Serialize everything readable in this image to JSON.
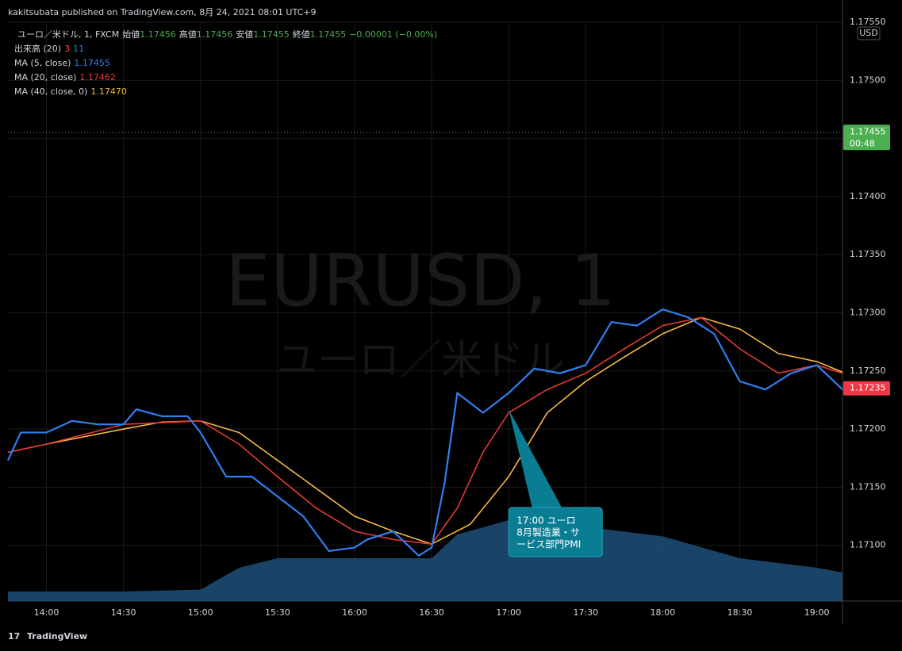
{
  "header": {
    "published": "kakitsubata published on TradingView.com, 8月 24, 2021 08:01 UTC+9",
    "symbol": "ユーロ／米ドル, 1, FXCM",
    "ohlc": [
      {
        "label": "始値",
        "value": "1.17456"
      },
      {
        "label": "高値",
        "value": "1.17456"
      },
      {
        "label": "安値",
        "value": "1.17455"
      },
      {
        "label": "終値",
        "value": "1.17455"
      }
    ],
    "change": "−0.00001 (−0.00%)",
    "volume_name": "出来高 (20)",
    "volume_values": [
      "3",
      "11"
    ],
    "footer": "TradingView"
  },
  "chart_data": {
    "type": "line",
    "watermark": [
      "EURUSD, 1",
      "ユーロ／米ドル"
    ],
    "currency": "USD",
    "xlim": [
      825,
      1150
    ],
    "xticks": [
      {
        "value": 840,
        "label": "14:00"
      },
      {
        "value": 870,
        "label": "14:30"
      },
      {
        "value": 900,
        "label": "15:00"
      },
      {
        "value": 930,
        "label": "15:30"
      },
      {
        "value": 960,
        "label": "16:00"
      },
      {
        "value": 990,
        "label": "16:30"
      },
      {
        "value": 1020,
        "label": "17:00"
      },
      {
        "value": 1050,
        "label": "17:30"
      },
      {
        "value": 1080,
        "label": "18:00"
      },
      {
        "value": 1110,
        "label": "18:30"
      },
      {
        "value": 1140,
        "label": "19:00"
      }
    ],
    "ylim": [
      1.17052,
      1.1755
    ],
    "yticks": [
      {
        "value": 1.171,
        "label": "1.17100"
      },
      {
        "value": 1.1715,
        "label": "1.17150"
      },
      {
        "value": 1.172,
        "label": "1.17200"
      },
      {
        "value": 1.1725,
        "label": "1.17250"
      },
      {
        "value": 1.173,
        "label": "1.17300"
      },
      {
        "value": 1.1735,
        "label": "1.17350"
      },
      {
        "value": 1.174,
        "label": "1.17400"
      },
      {
        "value": 1.1745,
        "label": "1.17450"
      },
      {
        "value": 1.175,
        "label": "1.17500"
      },
      {
        "value": 1.1755,
        "label": "1.17550"
      }
    ],
    "grid": true,
    "series": [
      {
        "name": "MA (5, close)",
        "legend_value": "1.17455",
        "color": "#2f7ff0",
        "x": [
          825,
          830,
          840,
          850,
          860,
          870,
          875,
          885,
          895,
          900,
          910,
          920,
          930,
          940,
          950,
          960,
          965,
          975,
          985,
          990,
          995,
          1000,
          1010,
          1020,
          1030,
          1040,
          1050,
          1060,
          1070,
          1080,
          1090,
          1100,
          1110,
          1120,
          1130,
          1140,
          1150
        ],
        "values": [
          1.17173,
          1.17197,
          1.17197,
          1.17207,
          1.17204,
          1.17204,
          1.17217,
          1.17211,
          1.17211,
          1.17197,
          1.17159,
          1.17159,
          1.17142,
          1.17125,
          1.17095,
          1.17098,
          1.17105,
          1.17112,
          1.17091,
          1.17098,
          1.17153,
          1.17231,
          1.17214,
          1.17231,
          1.17252,
          1.17248,
          1.17255,
          1.17292,
          1.17289,
          1.17303,
          1.17296,
          1.17282,
          1.17241,
          1.17234,
          1.17248,
          1.17255,
          1.17234
        ]
      },
      {
        "name": "MA (20, close)",
        "legend_value": "1.17462",
        "color": "#e53935",
        "x": [
          825,
          840,
          870,
          900,
          915,
          930,
          945,
          960,
          975,
          990,
          1000,
          1010,
          1020,
          1035,
          1050,
          1065,
          1080,
          1095,
          1110,
          1125,
          1140,
          1150
        ],
        "values": [
          1.1718,
          1.17187,
          1.17204,
          1.17207,
          1.17187,
          1.17159,
          1.17132,
          1.17112,
          1.17105,
          1.17101,
          1.17132,
          1.1718,
          1.17214,
          1.17234,
          1.17248,
          1.17269,
          1.17289,
          1.17296,
          1.17269,
          1.17248,
          1.17255,
          1.17248
        ]
      },
      {
        "name": "MA (40, close, 0)",
        "legend_value": "1.17470",
        "color": "#f5b841",
        "x": [
          825,
          840,
          870,
          885,
          900,
          915,
          930,
          945,
          960,
          975,
          990,
          1005,
          1020,
          1035,
          1050,
          1065,
          1080,
          1095,
          1110,
          1125,
          1140,
          1150
        ],
        "values": [
          1.1718,
          1.17187,
          1.172,
          1.17206,
          1.17207,
          1.17197,
          1.17173,
          1.17149,
          1.17125,
          1.17112,
          1.17101,
          1.17118,
          1.17159,
          1.17214,
          1.17241,
          1.17262,
          1.17282,
          1.17296,
          1.17286,
          1.17265,
          1.17258,
          1.17249
        ]
      }
    ],
    "volume": {
      "color": "#1f4f7a",
      "ylim": [
        0,
        100
      ],
      "x": [
        825,
        870,
        900,
        915,
        930,
        960,
        990,
        1000,
        1020,
        1050,
        1080,
        1110,
        1140,
        1150
      ],
      "values": [
        10,
        10,
        12,
        35,
        45,
        45,
        45,
        70,
        85,
        78,
        68,
        45,
        35,
        30
      ]
    },
    "price_labels": [
      {
        "value": 1.17455,
        "label": "1.17455",
        "sub": "00:48",
        "color": "#4caf50"
      },
      {
        "value": 1.17235,
        "label": "1.17235",
        "color": "#f23645"
      }
    ],
    "callout": {
      "x": 1020,
      "y": 1.17217,
      "lines": [
        "17:00 ユーロ",
        "8月製造業・サ",
        "ービス部門PMI"
      ]
    }
  }
}
